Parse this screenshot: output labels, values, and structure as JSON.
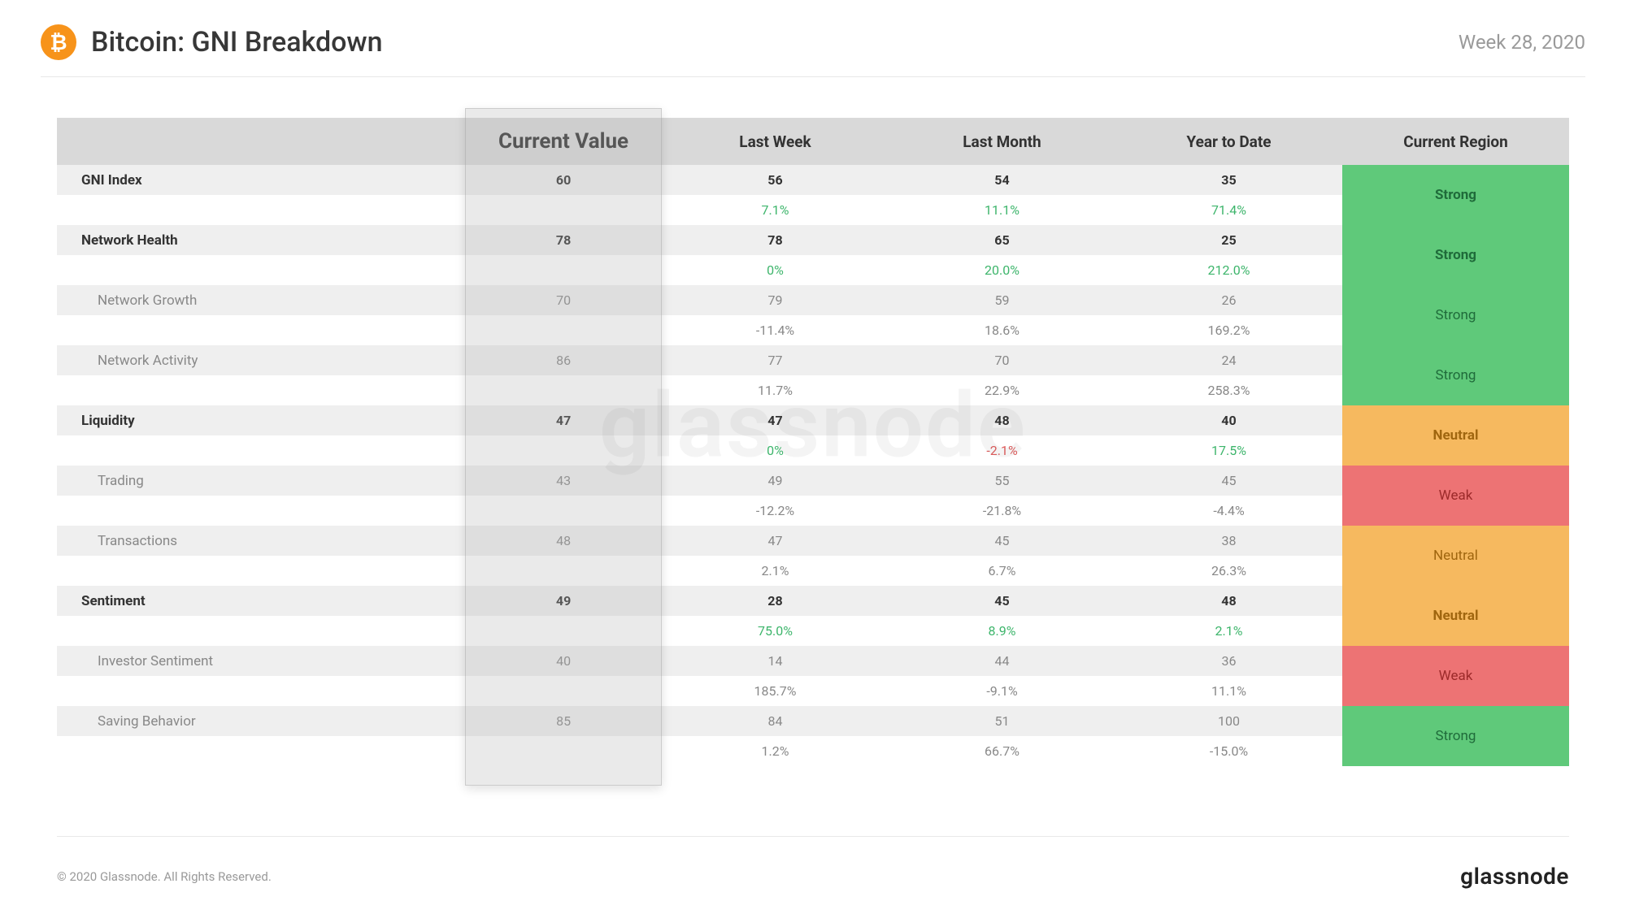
{
  "header": {
    "title": "Bitcoin: GNI Breakdown",
    "period": "Week 28, 2020",
    "icon_bg": "#f7931a",
    "icon_glyph": "₿"
  },
  "columns": {
    "name": "",
    "current": "Current Value",
    "last_week": "Last Week",
    "last_month": "Last Month",
    "ytd": "Year to Date",
    "region": "Current Region"
  },
  "regions": {
    "strong": {
      "label": "Strong",
      "bg": "#5fc97a",
      "fg": "#1f6b3a"
    },
    "neutral": {
      "label": "Neutral",
      "bg": "#f6b95f",
      "fg": "#a0660f"
    },
    "weak": {
      "label": "Weak",
      "bg": "#ed7374",
      "fg": "#9c2a2a"
    }
  },
  "colors": {
    "pos": "#3db56b",
    "neg": "#e05a5a",
    "header_bg": "#d9d9d9",
    "row_val_bg": "#efefef",
    "row_pct_bg": "#ffffff"
  },
  "rows": [
    {
      "name": "GNI Index",
      "level": "main",
      "current": "60",
      "last_week": "56",
      "last_month": "54",
      "ytd": "35",
      "pct_week": "7.1%",
      "pct_week_sign": "pos",
      "pct_month": "11.1%",
      "pct_month_sign": "pos",
      "pct_ytd": "71.4%",
      "pct_ytd_sign": "pos",
      "region": "strong"
    },
    {
      "name": "Network Health",
      "level": "main",
      "current": "78",
      "last_week": "78",
      "last_month": "65",
      "ytd": "25",
      "pct_week": "0%",
      "pct_week_sign": "pos",
      "pct_month": "20.0%",
      "pct_month_sign": "pos",
      "pct_ytd": "212.0%",
      "pct_ytd_sign": "pos",
      "region": "strong"
    },
    {
      "name": "Network Growth",
      "level": "sub",
      "current": "70",
      "last_week": "79",
      "last_month": "59",
      "ytd": "26",
      "pct_week": "-11.4%",
      "pct_week_sign": "neg",
      "pct_month": "18.6%",
      "pct_month_sign": "pos",
      "pct_ytd": "169.2%",
      "pct_ytd_sign": "pos",
      "region": "strong"
    },
    {
      "name": "Network Activity",
      "level": "sub",
      "current": "86",
      "last_week": "77",
      "last_month": "70",
      "ytd": "24",
      "pct_week": "11.7%",
      "pct_week_sign": "pos",
      "pct_month": "22.9%",
      "pct_month_sign": "pos",
      "pct_ytd": "258.3%",
      "pct_ytd_sign": "pos",
      "region": "strong"
    },
    {
      "name": "Liquidity",
      "level": "main",
      "current": "47",
      "last_week": "47",
      "last_month": "48",
      "ytd": "40",
      "pct_week": "0%",
      "pct_week_sign": "pos",
      "pct_month": "-2.1%",
      "pct_month_sign": "neg",
      "pct_ytd": "17.5%",
      "pct_ytd_sign": "pos",
      "region": "neutral"
    },
    {
      "name": "Trading",
      "level": "sub",
      "current": "43",
      "last_week": "49",
      "last_month": "55",
      "ytd": "45",
      "pct_week": "-12.2%",
      "pct_week_sign": "neg",
      "pct_month": "-21.8%",
      "pct_month_sign": "neg",
      "pct_ytd": "-4.4%",
      "pct_ytd_sign": "neg",
      "region": "weak"
    },
    {
      "name": "Transactions",
      "level": "sub",
      "current": "48",
      "last_week": "47",
      "last_month": "45",
      "ytd": "38",
      "pct_week": "2.1%",
      "pct_week_sign": "pos",
      "pct_month": "6.7%",
      "pct_month_sign": "pos",
      "pct_ytd": "26.3%",
      "pct_ytd_sign": "pos",
      "region": "neutral"
    },
    {
      "name": "Sentiment",
      "level": "main",
      "current": "49",
      "last_week": "28",
      "last_month": "45",
      "ytd": "48",
      "pct_week": "75.0%",
      "pct_week_sign": "pos",
      "pct_month": "8.9%",
      "pct_month_sign": "pos",
      "pct_ytd": "2.1%",
      "pct_ytd_sign": "pos",
      "region": "neutral"
    },
    {
      "name": "Investor Sentiment",
      "level": "sub",
      "current": "40",
      "last_week": "14",
      "last_month": "44",
      "ytd": "36",
      "pct_week": "185.7%",
      "pct_week_sign": "pos",
      "pct_month": "-9.1%",
      "pct_month_sign": "neg",
      "pct_ytd": "11.1%",
      "pct_ytd_sign": "pos",
      "region": "weak"
    },
    {
      "name": "Saving Behavior",
      "level": "sub",
      "current": "85",
      "last_week": "84",
      "last_month": "51",
      "ytd": "100",
      "pct_week": "1.2%",
      "pct_week_sign": "pos",
      "pct_month": "66.7%",
      "pct_month_sign": "pos",
      "pct_ytd": "-15.0%",
      "pct_ytd_sign": "neg",
      "region": "strong"
    }
  ],
  "watermark": "glassnode",
  "footer": {
    "copyright": "© 2020 Glassnode. All Rights Reserved.",
    "brand": "glassnode"
  }
}
